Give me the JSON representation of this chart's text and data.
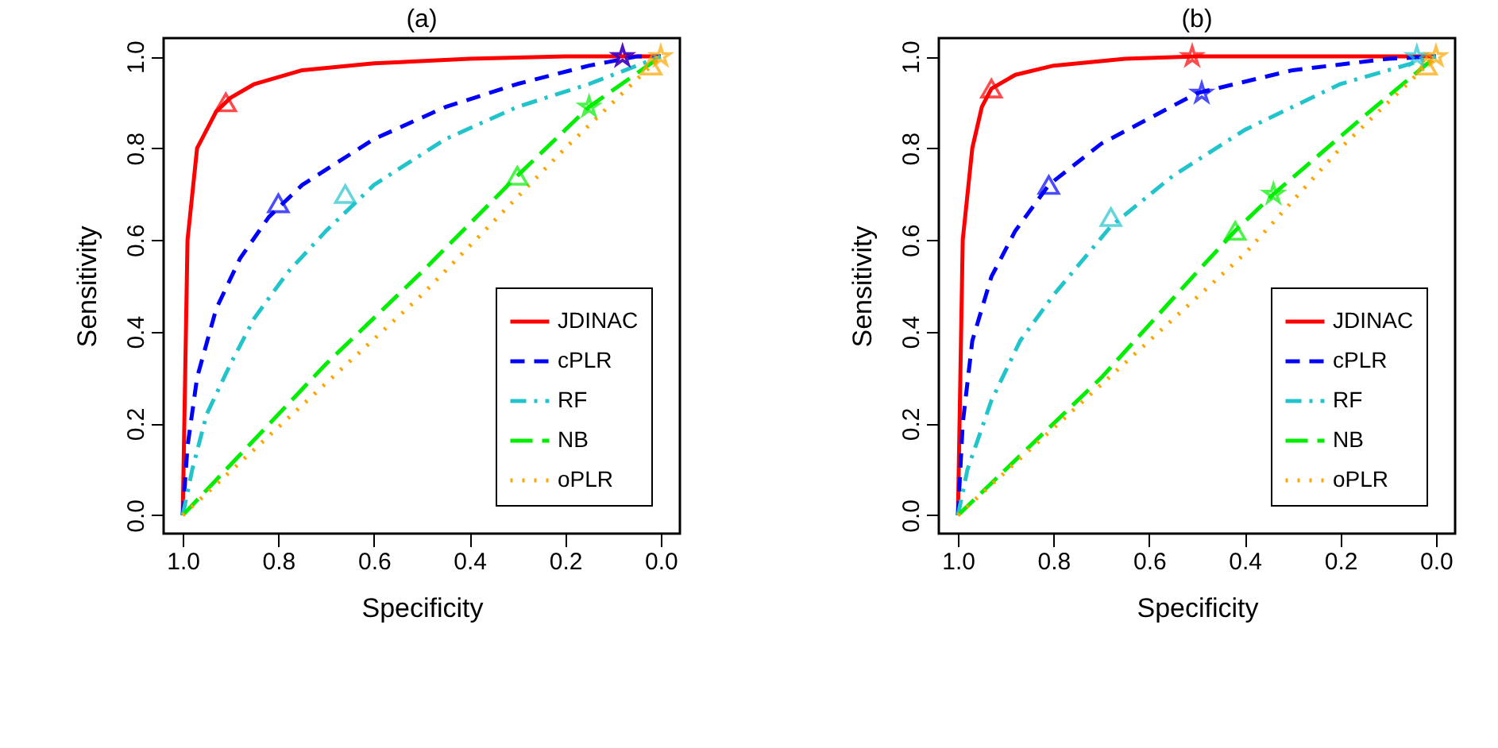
{
  "chart_data": [
    {
      "type": "line",
      "title": "(a)",
      "xlabel": "Specificity",
      "ylabel": "Sensitivity",
      "xlim": [
        1.04,
        -0.04
      ],
      "ylim": [
        -0.04,
        1.04
      ],
      "xticks": [
        {
          "value": 1,
          "label": "1.0"
        },
        {
          "value": 0.8,
          "label": "0.8"
        },
        {
          "value": 0.6,
          "label": "0.6"
        },
        {
          "value": 0.4,
          "label": "0.4"
        },
        {
          "value": 0.2,
          "label": "0.2"
        },
        {
          "value": 0,
          "label": "0.0"
        }
      ],
      "yticks": [
        {
          "value": 0,
          "label": "0.0"
        },
        {
          "value": 0.2,
          "label": "0.2"
        },
        {
          "value": 0.4,
          "label": "0.4"
        },
        {
          "value": 0.6,
          "label": "0.6"
        },
        {
          "value": 0.8,
          "label": "0.8"
        },
        {
          "value": 1,
          "label": "1.0"
        }
      ],
      "grid": false,
      "legend": "bottom right",
      "series": [
        {
          "name": "JDINAC",
          "color": "#ff0000",
          "line_style": "solid",
          "x": [
            1,
            0.995,
            0.99,
            0.97,
            0.93,
            0.9,
            0.85,
            0.75,
            0.6,
            0.4,
            0.2,
            0
          ],
          "values": [
            0,
            0.3,
            0.6,
            0.8,
            0.88,
            0.91,
            0.94,
            0.97,
            0.985,
            0.995,
            1,
            1
          ]
        },
        {
          "name": "cPLR",
          "color": "#0000ff",
          "line_style": "dashed",
          "x": [
            1,
            0.99,
            0.97,
            0.93,
            0.88,
            0.82,
            0.75,
            0.6,
            0.45,
            0.3,
            0.15,
            0.05,
            0
          ],
          "values": [
            0,
            0.15,
            0.3,
            0.45,
            0.56,
            0.65,
            0.72,
            0.82,
            0.89,
            0.94,
            0.98,
            1,
            1
          ]
        },
        {
          "name": "RF",
          "color": "#22c4cc",
          "line_style": "dashdot",
          "x": [
            1,
            0.98,
            0.95,
            0.9,
            0.85,
            0.78,
            0.7,
            0.6,
            0.45,
            0.3,
            0.15,
            0.05,
            0
          ],
          "values": [
            0,
            0.1,
            0.22,
            0.33,
            0.43,
            0.53,
            0.62,
            0.72,
            0.82,
            0.89,
            0.94,
            0.98,
            1
          ]
        },
        {
          "name": "NB",
          "color": "#00ee00",
          "line_style": "longdash",
          "x": [
            1,
            0.7,
            0.5,
            0.3,
            0.15,
            0
          ],
          "values": [
            0,
            0.33,
            0.53,
            0.74,
            0.89,
            1
          ]
        },
        {
          "name": "oPLR",
          "color": "#ffa500",
          "line_style": "dotted",
          "x": [
            1,
            0.5,
            0.2,
            0
          ],
          "values": [
            0,
            0.48,
            0.8,
            1
          ]
        },
        {
          "type": "scatter",
          "marker": "triangle",
          "color": "#ff0000",
          "x": [
            0.91
          ],
          "values": [
            0.9
          ]
        },
        {
          "type": "scatter",
          "marker": "triangle",
          "color": "#0000ff",
          "x": [
            0.8
          ],
          "values": [
            0.68
          ]
        },
        {
          "type": "scatter",
          "marker": "triangle",
          "color": "#22c4cc",
          "x": [
            0.66
          ],
          "values": [
            0.7
          ]
        },
        {
          "type": "scatter",
          "marker": "triangle",
          "color": "#00ee00",
          "x": [
            0.3
          ],
          "values": [
            0.74
          ]
        },
        {
          "type": "scatter",
          "marker": "triangle",
          "color": "#ffa500",
          "x": [
            0.02
          ],
          "values": [
            0.98
          ]
        },
        {
          "type": "scatter",
          "marker": "star",
          "color": "#ff0000",
          "x": [
            0.08
          ],
          "values": [
            1
          ]
        },
        {
          "type": "scatter",
          "marker": "star",
          "color": "#0000ff",
          "x": [
            0.08
          ],
          "values": [
            1
          ]
        },
        {
          "type": "scatter",
          "marker": "star",
          "color": "#00ee00",
          "x": [
            0.15
          ],
          "values": [
            0.89
          ]
        },
        {
          "type": "scatter",
          "marker": "star",
          "color": "#ffa500",
          "x": [
            0
          ],
          "values": [
            1
          ]
        }
      ]
    },
    {
      "type": "line",
      "title": "(b)",
      "xlabel": "Specificity",
      "ylabel": "Sensitivity",
      "xlim": [
        1.04,
        -0.04
      ],
      "ylim": [
        -0.04,
        1.04
      ],
      "xticks": [
        {
          "value": 1,
          "label": "1.0"
        },
        {
          "value": 0.8,
          "label": "0.8"
        },
        {
          "value": 0.6,
          "label": "0.6"
        },
        {
          "value": 0.4,
          "label": "0.4"
        },
        {
          "value": 0.2,
          "label": "0.2"
        },
        {
          "value": 0,
          "label": "0.0"
        }
      ],
      "yticks": [
        {
          "value": 0,
          "label": "0.0"
        },
        {
          "value": 0.2,
          "label": "0.2"
        },
        {
          "value": 0.4,
          "label": "0.4"
        },
        {
          "value": 0.6,
          "label": "0.6"
        },
        {
          "value": 0.8,
          "label": "0.8"
        },
        {
          "value": 1,
          "label": "1.0"
        }
      ],
      "grid": false,
      "legend": "bottom right",
      "series": [
        {
          "name": "JDINAC",
          "color": "#ff0000",
          "line_style": "solid",
          "x": [
            1,
            0.995,
            0.99,
            0.97,
            0.95,
            0.93,
            0.88,
            0.8,
            0.65,
            0.5,
            0.3,
            0
          ],
          "values": [
            0,
            0.3,
            0.6,
            0.8,
            0.89,
            0.93,
            0.96,
            0.98,
            0.995,
            1,
            1,
            1
          ]
        },
        {
          "name": "cPLR",
          "color": "#0000ff",
          "line_style": "dashed",
          "x": [
            1,
            0.99,
            0.97,
            0.93,
            0.88,
            0.81,
            0.7,
            0.5,
            0.3,
            0.1,
            0
          ],
          "values": [
            0,
            0.2,
            0.38,
            0.52,
            0.62,
            0.72,
            0.81,
            0.92,
            0.97,
            0.995,
            1
          ]
        },
        {
          "name": "RF",
          "color": "#22c4cc",
          "line_style": "dashdot",
          "x": [
            1,
            0.98,
            0.93,
            0.87,
            0.8,
            0.68,
            0.55,
            0.4,
            0.2,
            0
          ],
          "values": [
            0,
            0.1,
            0.25,
            0.38,
            0.48,
            0.63,
            0.74,
            0.84,
            0.94,
            1
          ]
        },
        {
          "name": "NB",
          "color": "#00ee00",
          "line_style": "longdash",
          "x": [
            1,
            0.7,
            0.5,
            0.42,
            0.34,
            0.15,
            0
          ],
          "values": [
            0,
            0.3,
            0.53,
            0.62,
            0.7,
            0.87,
            1
          ]
        },
        {
          "name": "oPLR",
          "color": "#ffa500",
          "line_style": "dotted",
          "x": [
            1,
            0.6,
            0.4,
            0.2,
            0
          ],
          "values": [
            0,
            0.38,
            0.57,
            0.8,
            1
          ]
        },
        {
          "type": "scatter",
          "marker": "triangle",
          "color": "#ff0000",
          "x": [
            0.93
          ],
          "values": [
            0.93
          ]
        },
        {
          "type": "scatter",
          "marker": "triangle",
          "color": "#0000ff",
          "x": [
            0.81
          ],
          "values": [
            0.72
          ]
        },
        {
          "type": "scatter",
          "marker": "triangle",
          "color": "#22c4cc",
          "x": [
            0.68
          ],
          "values": [
            0.65
          ]
        },
        {
          "type": "scatter",
          "marker": "triangle",
          "color": "#00ee00",
          "x": [
            0.42
          ],
          "values": [
            0.62
          ]
        },
        {
          "type": "scatter",
          "marker": "triangle",
          "color": "#ffa500",
          "x": [
            0.02
          ],
          "values": [
            0.98
          ]
        },
        {
          "type": "scatter",
          "marker": "star",
          "color": "#ff0000",
          "x": [
            0.51
          ],
          "values": [
            1
          ]
        },
        {
          "type": "scatter",
          "marker": "star",
          "color": "#0000ff",
          "x": [
            0.49
          ],
          "values": [
            0.92
          ]
        },
        {
          "type": "scatter",
          "marker": "star",
          "color": "#22c4cc",
          "x": [
            0.04
          ],
          "values": [
            1
          ]
        },
        {
          "type": "scatter",
          "marker": "star",
          "color": "#00ee00",
          "x": [
            0.34
          ],
          "values": [
            0.7
          ]
        },
        {
          "type": "scatter",
          "marker": "star",
          "color": "#ffa500",
          "x": [
            0
          ],
          "values": [
            1
          ]
        }
      ]
    }
  ]
}
